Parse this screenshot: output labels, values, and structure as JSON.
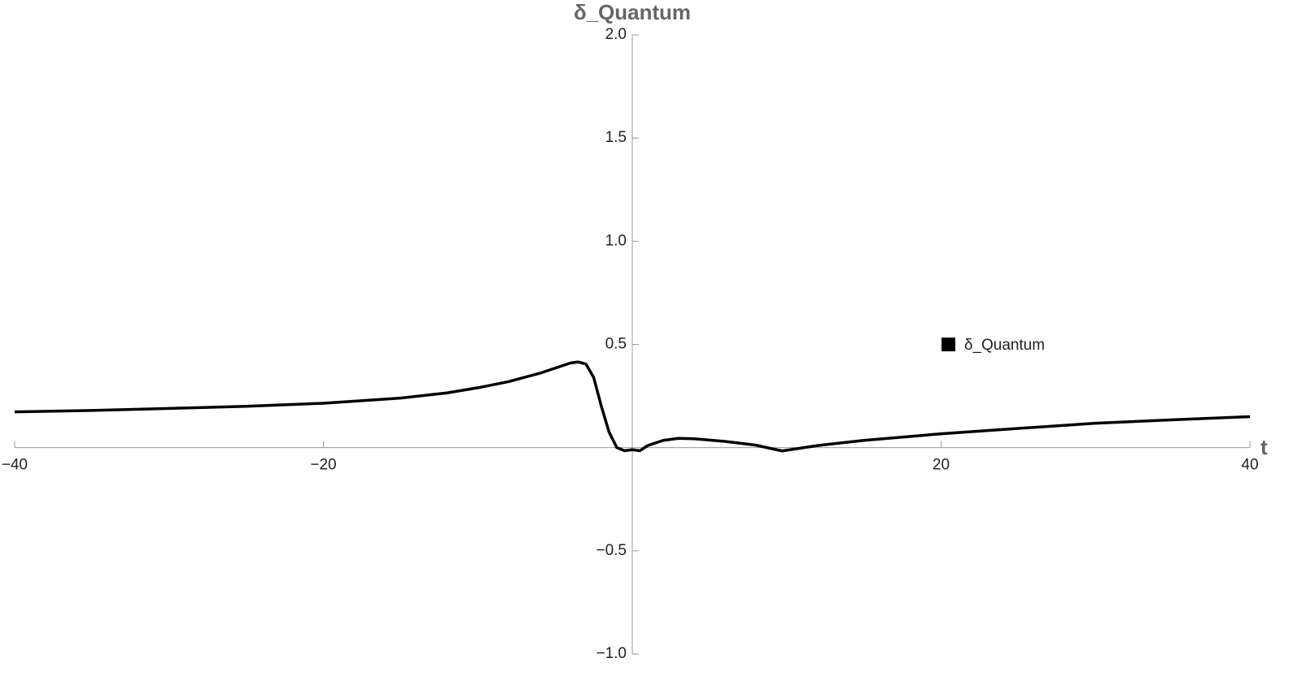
{
  "chart_data": {
    "type": "line",
    "x_label": "t",
    "y_label": "δ_Quantum",
    "x": [
      -40,
      -35,
      -30,
      -25,
      -20,
      -15,
      -12,
      -10,
      -8,
      -6,
      -5,
      -4,
      -3.5,
      -3,
      -2.5,
      -2,
      -1.5,
      -1,
      -0.5,
      0,
      0.5,
      1,
      2,
      3,
      4,
      6,
      8,
      9.7,
      12,
      15,
      20,
      25,
      30,
      35,
      40
    ],
    "series": [
      {
        "name": "δ_Quantum",
        "color": "#000000",
        "values": [
          0.173,
          0.18,
          0.19,
          0.2,
          0.215,
          0.24,
          0.265,
          0.29,
          0.32,
          0.36,
          0.385,
          0.41,
          0.415,
          0.405,
          0.34,
          0.2,
          0.075,
          0.0,
          -0.015,
          -0.01,
          -0.015,
          0.01,
          0.035,
          0.045,
          0.043,
          0.03,
          0.012,
          -0.016,
          0.01,
          0.035,
          0.067,
          0.093,
          0.118,
          0.135,
          0.15
        ]
      }
    ],
    "xlim": [
      -40,
      40
    ],
    "xticks": [
      {
        "value": -40,
        "label": "−40"
      },
      {
        "value": -20,
        "label": "−20"
      },
      20,
      40
    ],
    "ylim": [
      -1,
      2
    ],
    "yticks": [
      {
        "value": -1,
        "label": "−1.0"
      },
      {
        "value": -0.5,
        "label": "−0.5"
      },
      0.5,
      {
        "value": 1,
        "label": "1.0"
      },
      1.5,
      {
        "value": 2,
        "label": "2.0"
      }
    ]
  }
}
